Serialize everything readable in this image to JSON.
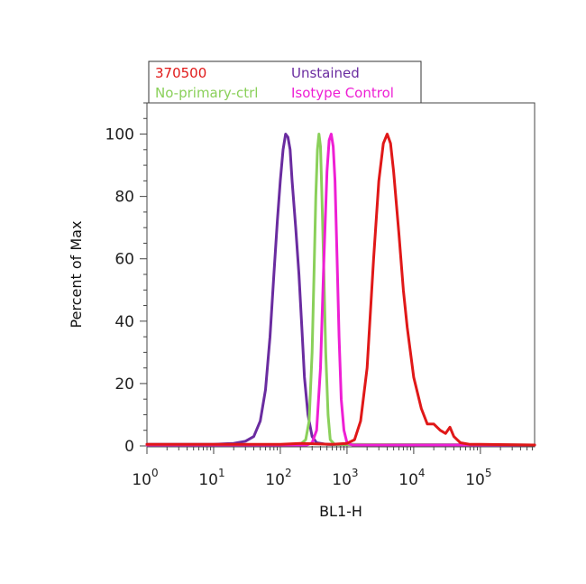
{
  "chart_data": {
    "type": "line",
    "title": "",
    "xlabel": "BL1-H",
    "ylabel": "Percent of Max",
    "x_scale": "log",
    "xlim": [
      1,
      650000
    ],
    "ylim": [
      0,
      110
    ],
    "x_ticks": [
      {
        "value": 1,
        "base": "10",
        "exp": "0"
      },
      {
        "value": 10,
        "base": "10",
        "exp": "1"
      },
      {
        "value": 100,
        "base": "10",
        "exp": "2"
      },
      {
        "value": 1000,
        "base": "10",
        "exp": "3"
      },
      {
        "value": 10000,
        "base": "10",
        "exp": "4"
      },
      {
        "value": 100000,
        "base": "10",
        "exp": "5"
      }
    ],
    "y_ticks": [
      0,
      20,
      40,
      60,
      80,
      100
    ],
    "grid": false,
    "legend_position": "top-left-above",
    "series": [
      {
        "name": "Unstained",
        "color": "#6a2ca0",
        "points": [
          [
            1,
            0.5
          ],
          [
            10,
            0.5
          ],
          [
            20,
            0.8
          ],
          [
            30,
            1.5
          ],
          [
            40,
            3
          ],
          [
            50,
            8
          ],
          [
            60,
            18
          ],
          [
            70,
            35
          ],
          [
            80,
            55
          ],
          [
            90,
            72
          ],
          [
            100,
            85
          ],
          [
            110,
            95
          ],
          [
            120,
            100
          ],
          [
            130,
            99
          ],
          [
            140,
            95
          ],
          [
            150,
            85
          ],
          [
            170,
            70
          ],
          [
            190,
            55
          ],
          [
            210,
            38
          ],
          [
            230,
            22
          ],
          [
            260,
            10
          ],
          [
            300,
            3
          ],
          [
            350,
            1
          ],
          [
            500,
            0.5
          ],
          [
            650000,
            0.3
          ]
        ]
      },
      {
        "name": "No-primary-ctrl",
        "color": "#8ad05a",
        "points": [
          [
            1,
            0.3
          ],
          [
            150,
            0.3
          ],
          [
            200,
            0.5
          ],
          [
            240,
            2
          ],
          [
            270,
            8
          ],
          [
            300,
            30
          ],
          [
            320,
            55
          ],
          [
            340,
            80
          ],
          [
            360,
            95
          ],
          [
            380,
            100
          ],
          [
            400,
            96
          ],
          [
            420,
            80
          ],
          [
            450,
            55
          ],
          [
            480,
            30
          ],
          [
            520,
            10
          ],
          [
            560,
            2
          ],
          [
            650,
            0.5
          ],
          [
            650000,
            0.3
          ]
        ]
      },
      {
        "name": "Isotype Control",
        "color": "#ee1fd4",
        "points": [
          [
            1,
            0.3
          ],
          [
            250,
            0.3
          ],
          [
            300,
            1
          ],
          [
            350,
            5
          ],
          [
            400,
            25
          ],
          [
            450,
            60
          ],
          [
            500,
            88
          ],
          [
            540,
            98
          ],
          [
            580,
            100
          ],
          [
            620,
            96
          ],
          [
            660,
            85
          ],
          [
            710,
            60
          ],
          [
            760,
            35
          ],
          [
            820,
            15
          ],
          [
            900,
            5
          ],
          [
            1000,
            1
          ],
          [
            1200,
            0.3
          ],
          [
            650000,
            0.3
          ]
        ]
      },
      {
        "name": "370500",
        "color": "#e01818",
        "points": [
          [
            1,
            0.5
          ],
          [
            100,
            0.5
          ],
          [
            200,
            0.8
          ],
          [
            600,
            0.5
          ],
          [
            1000,
            0.8
          ],
          [
            1300,
            2
          ],
          [
            1600,
            8
          ],
          [
            2000,
            25
          ],
          [
            2500,
            60
          ],
          [
            3000,
            85
          ],
          [
            3500,
            97
          ],
          [
            4000,
            100
          ],
          [
            4500,
            97
          ],
          [
            5000,
            88
          ],
          [
            6000,
            68
          ],
          [
            7000,
            50
          ],
          [
            8000,
            38
          ],
          [
            10000,
            22
          ],
          [
            13000,
            12
          ],
          [
            16000,
            7
          ],
          [
            20000,
            7
          ],
          [
            25000,
            5
          ],
          [
            30000,
            4
          ],
          [
            35000,
            6
          ],
          [
            40000,
            3
          ],
          [
            50000,
            1
          ],
          [
            70000,
            0.5
          ],
          [
            100000,
            0.5
          ],
          [
            650000,
            0.3
          ]
        ]
      }
    ],
    "legend": [
      {
        "label": "370500",
        "color": "#e01818"
      },
      {
        "label": "Unstained",
        "color": "#6a2ca0"
      },
      {
        "label": "No-primary-ctrl",
        "color": "#8ad05a"
      },
      {
        "label": "Isotype Control",
        "color": "#ee1fd4"
      }
    ]
  }
}
